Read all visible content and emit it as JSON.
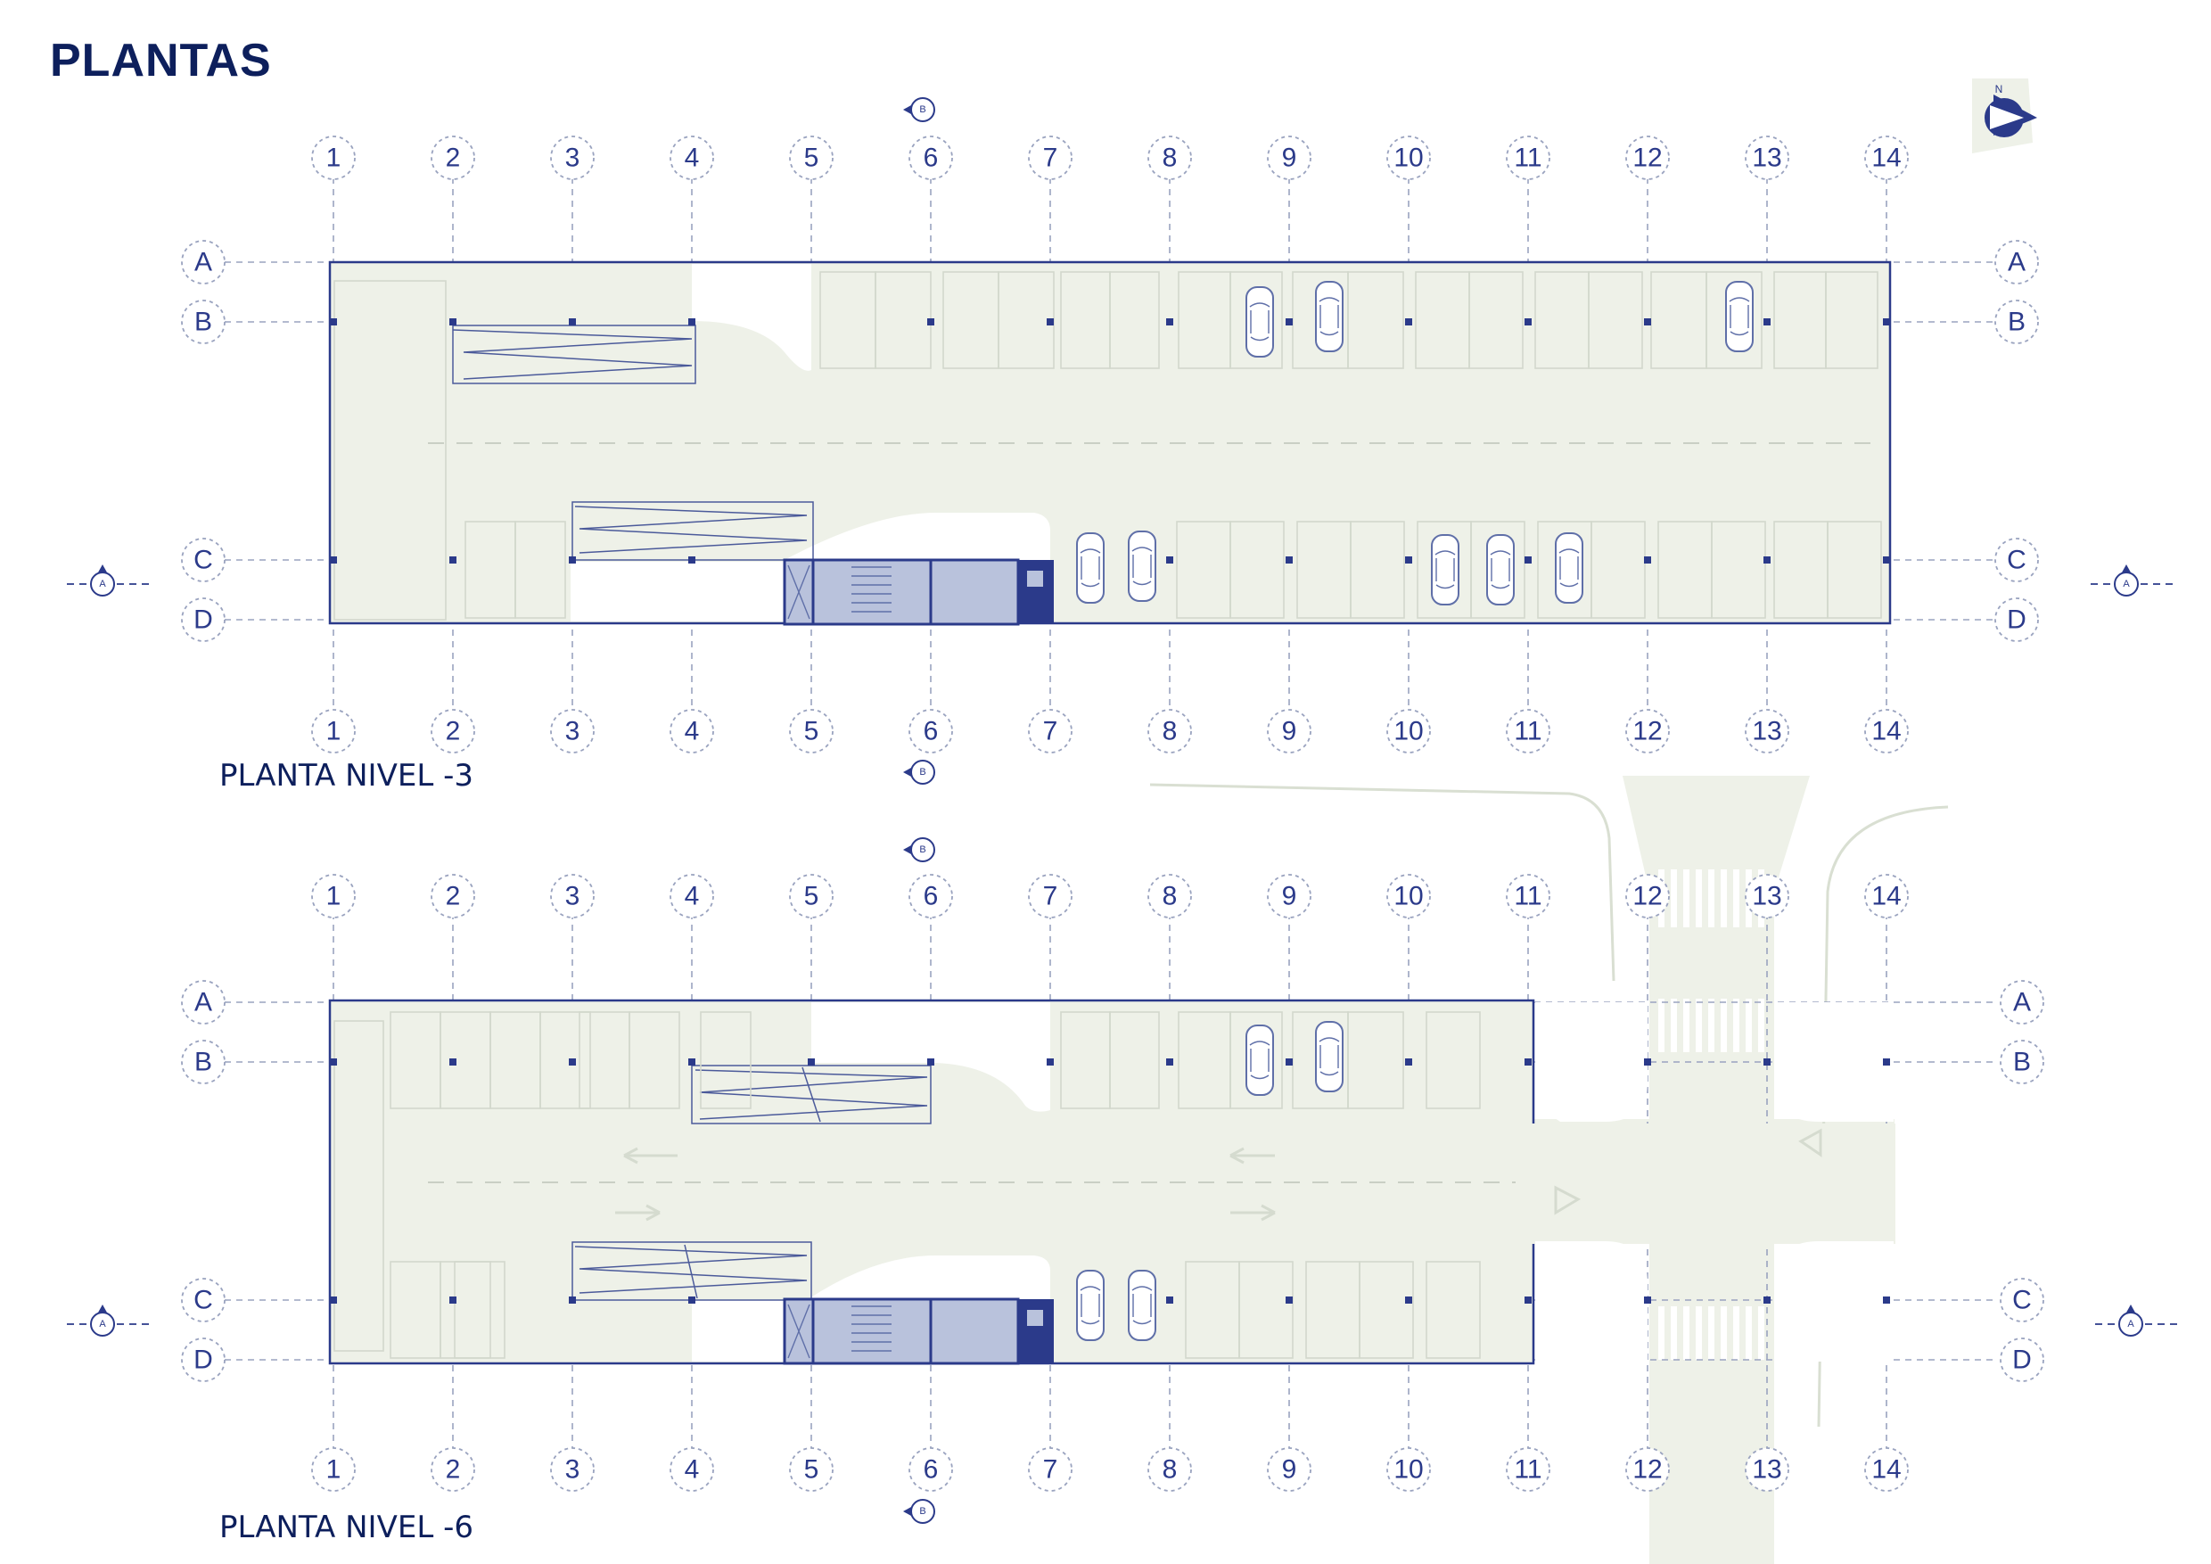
{
  "title": "PLANTAS",
  "plans": [
    {
      "label": "PLANTA NIVEL -3",
      "columns_top": [
        "1",
        "2",
        "3",
        "4",
        "5",
        "6",
        "7",
        "8",
        "9",
        "10",
        "11",
        "12",
        "13",
        "14"
      ],
      "columns_bottom": [
        "1",
        "2",
        "3",
        "4",
        "5",
        "6",
        "7",
        "8",
        "9",
        "10",
        "11",
        "12",
        "13",
        "14"
      ],
      "rows": [
        "A",
        "B",
        "C",
        "D"
      ],
      "section_a": "A",
      "section_b": "B"
    },
    {
      "label": "PLANTA NIVEL -6",
      "columns_top": [
        "1",
        "2",
        "3",
        "4",
        "5",
        "6",
        "7",
        "8",
        "9",
        "10",
        "11",
        "12",
        "13",
        "14"
      ],
      "columns_bottom": [
        "1",
        "2",
        "3",
        "4",
        "5",
        "6",
        "7",
        "8",
        "9",
        "10",
        "11",
        "12",
        "13",
        "14"
      ],
      "rows": [
        "A",
        "B",
        "C",
        "D"
      ],
      "section_a": "A",
      "section_b": "B"
    }
  ],
  "north_label": "N",
  "colors": {
    "accent": "#2b3a8a",
    "title": "#0d1f5c",
    "floor": "#eef1e8",
    "core": "#b9c2dc"
  },
  "icons": [
    "north-arrow-icon",
    "section-marker-icon",
    "car-icon",
    "accessible-parking-icon"
  ]
}
